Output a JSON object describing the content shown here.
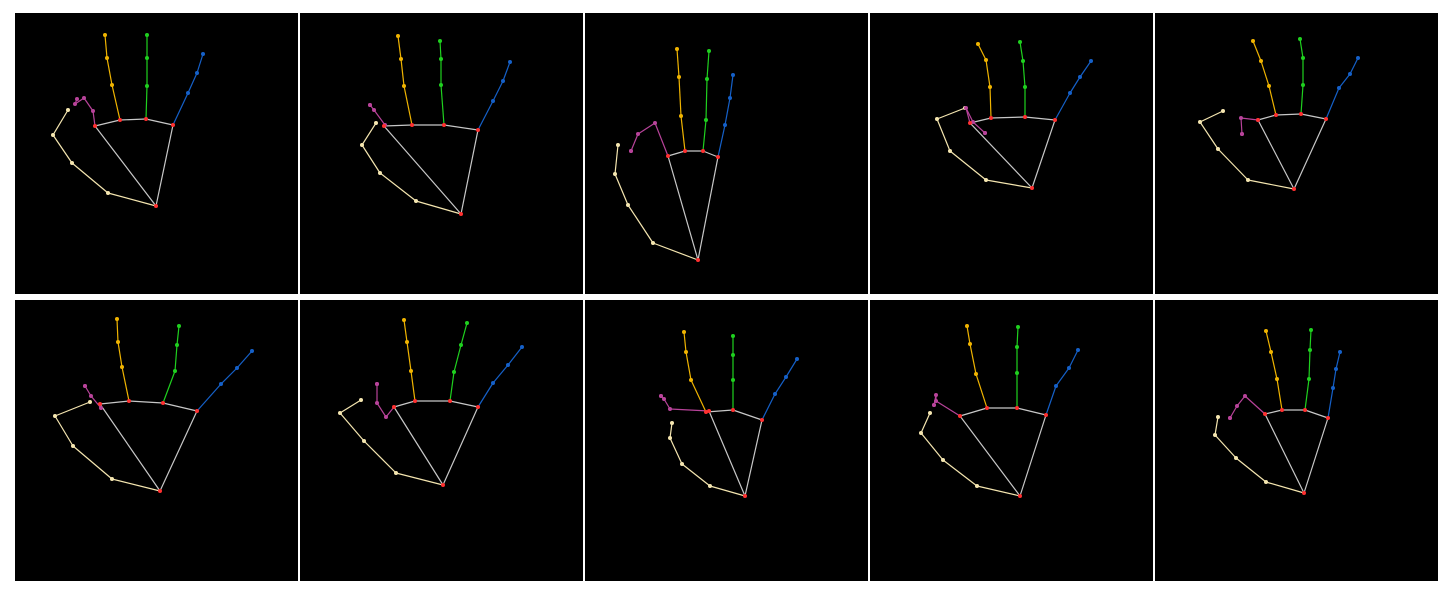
{
  "colors": {
    "background": "#ffffff",
    "panel": "#000000",
    "palm": "#c8c8c8",
    "joint": "#ff3030",
    "thumb": "#f5e6b0",
    "index": "#b8439a",
    "middle": "#f0b400",
    "ring": "#1fd11f",
    "pinky": "#1560c8"
  },
  "panels": [
    {
      "name": "panel-1",
      "wrist": [
        141,
        193
      ],
      "palm": [
        [
          93,
          113
        ],
        [
          80,
          113
        ],
        [
          105,
          107
        ],
        [
          131,
          106
        ],
        [
          158,
          112
        ]
      ],
      "thumb": [
        [
          93,
          180
        ],
        [
          57,
          150
        ],
        [
          38,
          122
        ],
        [
          53,
          97
        ]
      ],
      "index": [
        [
          78,
          98
        ],
        [
          69,
          85
        ],
        [
          60,
          91
        ],
        [
          62,
          86
        ]
      ],
      "middle": [
        [
          97,
          72
        ],
        [
          92,
          45
        ],
        [
          90,
          22
        ]
      ],
      "ring": [
        [
          132,
          73
        ],
        [
          132,
          45
        ],
        [
          132,
          22
        ]
      ],
      "pinky": [
        [
          173,
          80
        ],
        [
          182,
          60
        ],
        [
          188,
          41
        ]
      ]
    },
    {
      "name": "panel-2",
      "wrist": [
        161,
        201
      ],
      "palm": [
        [
          178,
          117
        ],
        [
          84,
          113
        ],
        [
          112,
          112
        ],
        [
          144,
          112
        ],
        [
          178,
          117
        ]
      ],
      "thumb": [
        [
          116,
          188
        ],
        [
          80,
          160
        ],
        [
          62,
          132
        ],
        [
          76,
          110
        ]
      ],
      "index": [
        [
          85,
          112
        ],
        [
          74,
          97
        ],
        [
          70,
          92
        ],
        [
          70,
          92
        ]
      ],
      "middle": [
        [
          104,
          73
        ],
        [
          101,
          46
        ],
        [
          98,
          23
        ]
      ],
      "ring": [
        [
          141,
          72
        ],
        [
          141,
          46
        ],
        [
          140,
          28
        ]
      ],
      "pinky": [
        [
          193,
          88
        ],
        [
          203,
          68
        ],
        [
          210,
          49
        ]
      ]
    },
    {
      "name": "panel-3",
      "wrist": [
        113,
        247
      ],
      "palm": [
        [
          83,
          143
        ],
        [
          83,
          143
        ],
        [
          100,
          138
        ],
        [
          118,
          138
        ],
        [
          133,
          144
        ]
      ],
      "thumb": [
        [
          68,
          230
        ],
        [
          43,
          192
        ],
        [
          30,
          161
        ],
        [
          33,
          132
        ]
      ],
      "index": [
        [
          70,
          110
        ],
        [
          53,
          121
        ],
        [
          46,
          138
        ],
        [
          46,
          138
        ]
      ],
      "middle": [
        [
          96,
          103
        ],
        [
          94,
          64
        ],
        [
          92,
          36
        ]
      ],
      "ring": [
        [
          121,
          107
        ],
        [
          122,
          66
        ],
        [
          124,
          38
        ]
      ],
      "pinky": [
        [
          140,
          112
        ],
        [
          145,
          85
        ],
        [
          148,
          62
        ]
      ]
    },
    {
      "name": "panel-4",
      "wrist": [
        162,
        175
      ],
      "palm": [
        [
          100,
          110
        ],
        [
          100,
          110
        ],
        [
          121,
          105
        ],
        [
          155,
          104
        ],
        [
          185,
          107
        ]
      ],
      "thumb": [
        [
          116,
          167
        ],
        [
          80,
          138
        ],
        [
          67,
          106
        ],
        [
          95,
          95
        ]
      ],
      "index": [
        [
          96,
          95
        ],
        [
          103,
          109
        ],
        [
          115,
          120
        ],
        [
          115,
          120
        ]
      ],
      "middle": [
        [
          120,
          74
        ],
        [
          116,
          47
        ],
        [
          108,
          31
        ]
      ],
      "ring": [
        [
          155,
          74
        ],
        [
          153,
          48
        ],
        [
          150,
          29
        ]
      ],
      "pinky": [
        [
          200,
          80
        ],
        [
          210,
          64
        ],
        [
          221,
          48
        ]
      ]
    },
    {
      "name": "panel-5",
      "wrist": [
        139,
        176
      ],
      "palm": [
        [
          103,
          107
        ],
        [
          103,
          107
        ],
        [
          121,
          102
        ],
        [
          146,
          101
        ],
        [
          171,
          106
        ]
      ],
      "thumb": [
        [
          93,
          167
        ],
        [
          63,
          136
        ],
        [
          45,
          109
        ],
        [
          68,
          98
        ]
      ],
      "index": [
        [
          103,
          107
        ],
        [
          86,
          105
        ],
        [
          87,
          121
        ],
        [
          87,
          121
        ]
      ],
      "middle": [
        [
          114,
          73
        ],
        [
          106,
          48
        ],
        [
          98,
          28
        ]
      ],
      "ring": [
        [
          148,
          72
        ],
        [
          148,
          45
        ],
        [
          145,
          26
        ]
      ],
      "pinky": [
        [
          184,
          75
        ],
        [
          195,
          61
        ],
        [
          203,
          45
        ]
      ]
    },
    {
      "name": "panel-6",
      "wrist": [
        145,
        191
      ],
      "palm": [
        [
          83,
          106
        ],
        [
          85,
          104
        ],
        [
          114,
          101
        ],
        [
          148,
          103
        ],
        [
          182,
          111
        ]
      ],
      "thumb": [
        [
          97,
          179
        ],
        [
          58,
          146
        ],
        [
          40,
          116
        ],
        [
          75,
          102
        ]
      ],
      "index": [
        [
          86,
          108
        ],
        [
          76,
          96
        ],
        [
          70,
          86
        ],
        [
          70,
          86
        ]
      ],
      "middle": [
        [
          107,
          67
        ],
        [
          103,
          42
        ],
        [
          102,
          19
        ]
      ],
      "ring": [
        [
          160,
          71
        ],
        [
          162,
          45
        ],
        [
          164,
          26
        ]
      ],
      "pinky": [
        [
          206,
          84
        ],
        [
          222,
          68
        ],
        [
          237,
          51
        ]
      ]
    },
    {
      "name": "panel-7",
      "wrist": [
        143,
        185
      ],
      "palm": [
        [
          94,
          107
        ],
        [
          94,
          107
        ],
        [
          115,
          101
        ],
        [
          150,
          101
        ],
        [
          178,
          107
        ]
      ],
      "thumb": [
        [
          96,
          173
        ],
        [
          64,
          141
        ],
        [
          40,
          113
        ],
        [
          61,
          100
        ]
      ],
      "index": [
        [
          86,
          117
        ],
        [
          77,
          103
        ],
        [
          77,
          84
        ],
        [
          77,
          84
        ]
      ],
      "middle": [
        [
          111,
          71
        ],
        [
          107,
          42
        ],
        [
          104,
          20
        ]
      ],
      "ring": [
        [
          154,
          72
        ],
        [
          161,
          45
        ],
        [
          167,
          23
        ]
      ],
      "pinky": [
        [
          193,
          83
        ],
        [
          208,
          65
        ],
        [
          222,
          47
        ]
      ]
    },
    {
      "name": "panel-8",
      "wrist": [
        160,
        196
      ],
      "palm": [
        [
          124,
          111
        ],
        [
          124,
          111
        ],
        [
          121,
          112
        ],
        [
          148,
          110
        ],
        [
          177,
          120
        ]
      ],
      "thumb": [
        [
          125,
          186
        ],
        [
          97,
          164
        ],
        [
          85,
          138
        ],
        [
          87,
          123
        ]
      ],
      "index": [
        [
          85,
          109
        ],
        [
          79,
          99
        ],
        [
          76,
          96
        ],
        [
          76,
          96
        ]
      ],
      "middle": [
        [
          106,
          80
        ],
        [
          101,
          52
        ],
        [
          99,
          32
        ]
      ],
      "ring": [
        [
          148,
          80
        ],
        [
          148,
          55
        ],
        [
          148,
          36
        ]
      ],
      "pinky": [
        [
          190,
          94
        ],
        [
          201,
          77
        ],
        [
          212,
          59
        ]
      ]
    },
    {
      "name": "panel-9",
      "wrist": [
        150,
        196
      ],
      "palm": [
        [
          90,
          116
        ],
        [
          90,
          116
        ],
        [
          117,
          108
        ],
        [
          147,
          108
        ],
        [
          176,
          115
        ]
      ],
      "thumb": [
        [
          107,
          186
        ],
        [
          73,
          160
        ],
        [
          51,
          133
        ],
        [
          60,
          113
        ]
      ],
      "index": [
        [
          66,
          101
        ],
        [
          66,
          95
        ],
        [
          64,
          105
        ],
        [
          64,
          105
        ]
      ],
      "middle": [
        [
          106,
          74
        ],
        [
          100,
          44
        ],
        [
          97,
          26
        ]
      ],
      "ring": [
        [
          147,
          73
        ],
        [
          147,
          47
        ],
        [
          148,
          27
        ]
      ],
      "pinky": [
        [
          186,
          86
        ],
        [
          199,
          68
        ],
        [
          208,
          50
        ]
      ]
    },
    {
      "name": "panel-10",
      "wrist": [
        149,
        193
      ],
      "palm": [
        [
          110,
          114
        ],
        [
          110,
          114
        ],
        [
          127,
          110
        ],
        [
          150,
          110
        ],
        [
          173,
          118
        ]
      ],
      "thumb": [
        [
          111,
          182
        ],
        [
          81,
          158
        ],
        [
          60,
          135
        ],
        [
          63,
          117
        ]
      ],
      "index": [
        [
          90,
          96
        ],
        [
          82,
          106
        ],
        [
          75,
          118
        ],
        [
          75,
          118
        ]
      ],
      "middle": [
        [
          122,
          79
        ],
        [
          116,
          52
        ],
        [
          111,
          31
        ]
      ],
      "ring": [
        [
          154,
          79
        ],
        [
          155,
          50
        ],
        [
          156,
          30
        ]
      ],
      "pinky": [
        [
          178,
          88
        ],
        [
          181,
          69
        ],
        [
          185,
          52
        ]
      ]
    }
  ]
}
